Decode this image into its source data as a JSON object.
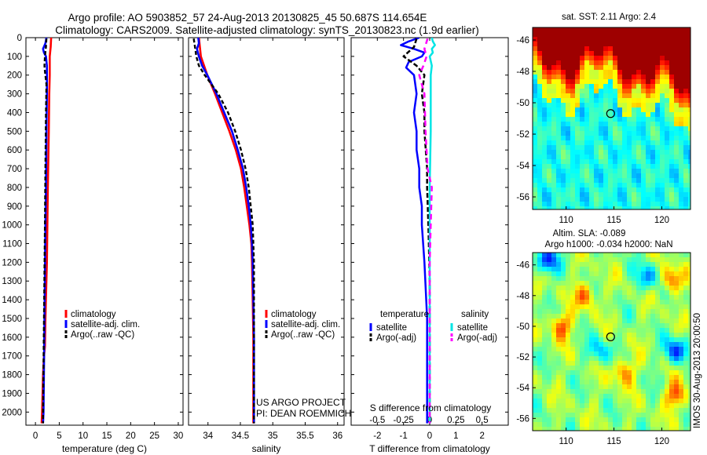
{
  "title": {
    "line1": "Argo profile: AO 5903852_57 24-Aug-2013 20130825_45 50.687S 114.654E",
    "line2": "Climatology: CARS2009. Satellite-adjusted climatology: synTS_20130823.nc (1.9d earlier)"
  },
  "depth_ticks": [
    "0",
    "100",
    "200",
    "300",
    "400",
    "500",
    "600",
    "700",
    "800",
    "900",
    "1000",
    "1100",
    "1200",
    "1300",
    "1400",
    "1500",
    "1600",
    "1700",
    "1800",
    "1900",
    "2000"
  ],
  "colors": {
    "climatology": "#ff0000",
    "satellite": "#0000ff",
    "argo": "#000000",
    "sal_satellite": "#00e5e5",
    "sal_argo": "#ff00ff"
  },
  "chart_data": [
    {
      "type": "line",
      "id": "temperature",
      "xlabel": "temperature (deg C)",
      "ylabel": "depth",
      "xlim": [
        -2,
        31
      ],
      "ylim": [
        2070,
        0
      ],
      "xticks": [
        "0",
        "5",
        "10",
        "15",
        "20",
        "25",
        "30"
      ],
      "legend": {
        "position": "lower-center",
        "entries": [
          "climatology",
          "satellite-adj. clim.",
          "Argo(..raw -QC)"
        ]
      },
      "series": [
        {
          "name": "climatology",
          "color": "#ff0000",
          "depth": [
            0,
            50,
            100,
            200,
            300,
            500,
            800,
            1000,
            1200,
            1500,
            1650,
            1700,
            1800,
            2000,
            2060
          ],
          "values": [
            3.3,
            3.2,
            3.0,
            3.0,
            2.9,
            2.8,
            2.6,
            2.5,
            2.4,
            2.1,
            2.0,
            1.8,
            1.6,
            1.4,
            1.3
          ]
        },
        {
          "name": "satellite-adj. clim.",
          "color": "#0000ff",
          "depth": [
            0,
            30,
            60,
            80,
            100,
            150,
            200,
            300,
            500,
            800,
            1000,
            1500,
            2000,
            2060
          ],
          "values": [
            2.3,
            2.1,
            1.6,
            1.8,
            2.2,
            2.4,
            2.4,
            2.4,
            2.3,
            2.2,
            2.1,
            1.9,
            1.7,
            1.6
          ]
        },
        {
          "name": "Argo(..raw -QC)",
          "color": "#000000",
          "depth": [
            5,
            50,
            100,
            150,
            180,
            250,
            400,
            700,
            1000,
            1500,
            2000,
            2060
          ],
          "values": [
            2.3,
            2.2,
            2.0,
            1.9,
            2.0,
            2.3,
            2.2,
            2.1,
            2.0,
            1.8,
            1.6,
            1.6
          ]
        }
      ]
    },
    {
      "type": "line",
      "id": "salinity",
      "xlabel": "salinity",
      "ylabel": "depth",
      "xlim": [
        33.7,
        36.1
      ],
      "ylim": [
        2070,
        0
      ],
      "xticks": [
        "34",
        "34.5",
        "35",
        "35.5",
        "36"
      ],
      "legend": {
        "position": "lower-center",
        "entries": [
          "climatology",
          "satellite-adj. clim.",
          "Argo(..raw -QC)"
        ]
      },
      "annotation": [
        "US ARGO PROJECT",
        "PI: DEAN ROEMMICH"
      ],
      "series": [
        {
          "name": "climatology",
          "color": "#ff0000",
          "depth": [
            0,
            100,
            200,
            300,
            400,
            500,
            600,
            700,
            800,
            900,
            1000,
            1100,
            1200,
            1400,
            1600,
            2060
          ],
          "values": [
            33.86,
            33.89,
            33.99,
            34.11,
            34.22,
            34.33,
            34.43,
            34.51,
            34.56,
            34.6,
            34.64,
            34.67,
            34.68,
            34.69,
            34.7,
            34.7
          ]
        },
        {
          "name": "satellite-adj. clim.",
          "color": "#0000ff",
          "depth": [
            0,
            30,
            60,
            100,
            150,
            200,
            300,
            400,
            500,
            600,
            700,
            800,
            900,
            1000,
            1100,
            1200,
            1400,
            1600,
            2060
          ],
          "values": [
            33.85,
            33.86,
            33.83,
            33.86,
            33.91,
            33.99,
            34.13,
            34.25,
            34.37,
            34.46,
            34.54,
            34.59,
            34.63,
            34.66,
            34.68,
            34.69,
            34.7,
            34.71,
            34.71
          ]
        },
        {
          "name": "Argo(..raw -QC)",
          "color": "#000000",
          "depth": [
            5,
            50,
            100,
            150,
            200,
            300,
            400,
            500,
            600,
            700,
            800,
            900,
            1000,
            1100,
            1200,
            1400,
            1600,
            2060
          ],
          "values": [
            33.78,
            33.8,
            33.82,
            33.86,
            33.95,
            34.16,
            34.31,
            34.42,
            34.51,
            34.58,
            34.63,
            34.66,
            34.69,
            34.7,
            34.71,
            34.71,
            34.71,
            34.71
          ]
        }
      ]
    },
    {
      "type": "line",
      "id": "difference",
      "xlabel": "T difference from climatology",
      "top_label": "S difference from climatology",
      "ylabel": "depth",
      "xlim": [
        -3,
        3
      ],
      "ylim": [
        2070,
        0
      ],
      "xticks": [
        "-2",
        "-1",
        "0",
        "1",
        "2"
      ],
      "top_xticks": [
        "-0.5",
        "-0.25",
        "0",
        "0.25",
        "0.5"
      ],
      "legend": {
        "position": "lower-center",
        "columns": [
          {
            "header": "temperature",
            "entries": [
              "satellite",
              "Argo(-adj)"
            ]
          },
          {
            "header": "salinity",
            "entries": [
              "satellite",
              "Argo(-adj)"
            ]
          }
        ]
      },
      "series": [
        {
          "name": "temperature satellite",
          "color": "#0000ff",
          "depth": [
            0,
            20,
            40,
            60,
            80,
            100,
            130,
            160,
            200,
            300,
            400,
            500,
            600,
            700,
            800,
            900,
            1000,
            1200,
            1500,
            2060
          ],
          "values": [
            -0.4,
            -0.8,
            -1.1,
            -0.6,
            -0.2,
            -0.3,
            -0.8,
            -0.9,
            -0.6,
            -0.5,
            -0.6,
            -0.5,
            -0.5,
            -0.4,
            -0.4,
            -0.3,
            -0.3,
            -0.2,
            -0.1,
            -0.1
          ]
        },
        {
          "name": "temperature Argo(-adj)",
          "color": "#000000",
          "depth": [
            5,
            50,
            100,
            150,
            200,
            300,
            400,
            500,
            600,
            700,
            800,
            1000,
            1300,
            1600,
            2060
          ],
          "values": [
            -0.5,
            -0.6,
            -1.0,
            -0.5,
            -0.2,
            -0.3,
            -0.2,
            -0.2,
            -0.15,
            -0.1,
            -0.1,
            -0.05,
            0.0,
            0.0,
            0.0
          ]
        },
        {
          "name": "salinity satellite",
          "color": "#00e5e5",
          "depth": [
            0,
            20,
            40,
            60,
            80,
            100,
            150,
            200,
            300,
            500,
            800,
            1000,
            1500,
            2060
          ],
          "values": [
            0.02,
            0.03,
            0.05,
            0.02,
            0.03,
            0.0,
            0.02,
            0.01,
            0.01,
            0.01,
            0.0,
            0.0,
            0.0,
            0.0
          ]
        },
        {
          "name": "salinity Argo(-adj)",
          "color": "#ff00ff",
          "depth": [
            5,
            60,
            100,
            150,
            200,
            300,
            500,
            700,
            800,
            1000,
            1200,
            1400,
            1600,
            2060
          ],
          "values": [
            -0.02,
            -0.05,
            -0.03,
            -0.06,
            -0.1,
            -0.05,
            -0.04,
            -0.02,
            0.02,
            0.01,
            0.0,
            0.0,
            0.0,
            0.0
          ]
        }
      ]
    },
    {
      "type": "heatmap",
      "id": "sst_map",
      "title": "sat. SST: 2.11 Argo: 2.4",
      "xticks": [
        "110",
        "115",
        "120"
      ],
      "yticks": [
        "-46",
        "-48",
        "-50",
        "-52",
        "-54",
        "-56"
      ],
      "xlim": [
        106.5,
        123
      ],
      "ylim": [
        -56.8,
        -45.2
      ],
      "marker": {
        "lon": 114.654,
        "lat": -50.687
      }
    },
    {
      "type": "heatmap",
      "id": "sla_map",
      "title_line1": "Altim. SLA: -0.089",
      "title_line2": "Argo h1000: -0.034 h2000: NaN",
      "xticks": [
        "110",
        "115",
        "120"
      ],
      "yticks": [
        "-46",
        "-48",
        "-50",
        "-52",
        "-54",
        "-56"
      ],
      "xlim": [
        106.5,
        123
      ],
      "ylim": [
        -56.8,
        -45.2
      ],
      "marker": {
        "lon": 114.654,
        "lat": -50.687
      }
    }
  ],
  "watermark": "IMOS 30-Aug-2013 20:00:50"
}
